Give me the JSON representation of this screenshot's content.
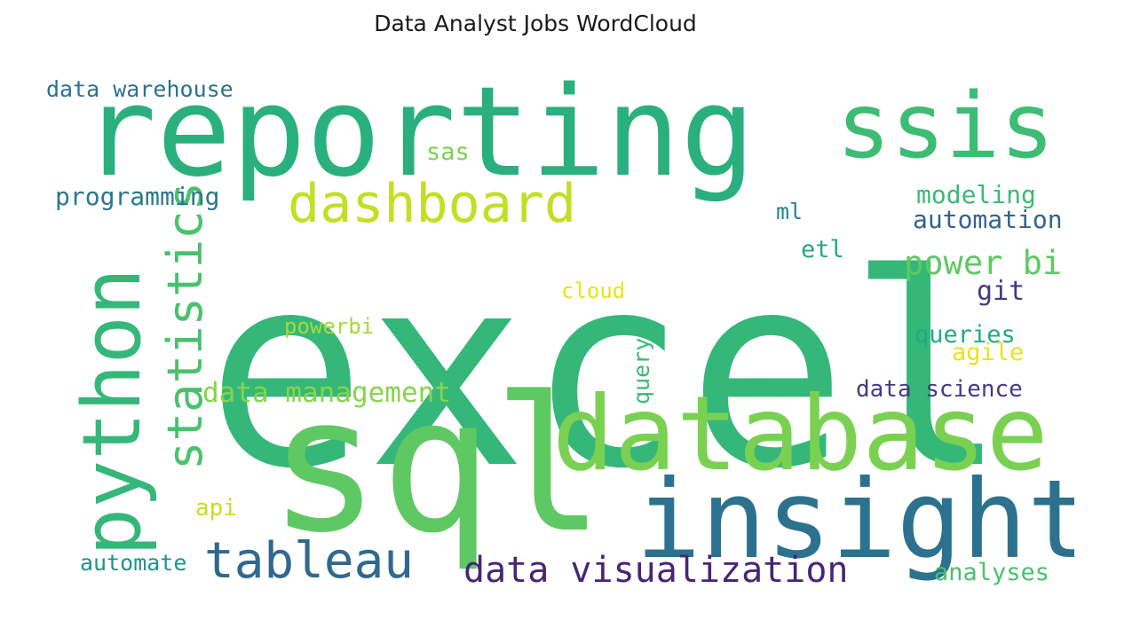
{
  "title": "Data Analyst Jobs WordCloud",
  "words": {
    "excel": {
      "text": "excel",
      "color": "#35b779"
    },
    "reporting": {
      "text": "reporting",
      "color": "#2ab07f"
    },
    "ssis": {
      "text": "ssis",
      "color": "#3dbc74"
    },
    "sql": {
      "text": "sql",
      "color": "#5ec962"
    },
    "database": {
      "text": "database",
      "color": "#7ad151"
    },
    "insight": {
      "text": "insight",
      "color": "#2c728e"
    },
    "python": {
      "text": "python",
      "color": "#35b779"
    },
    "dashboard": {
      "text": "dashboard",
      "color": "#c2df23"
    },
    "statistics": {
      "text": "statistics",
      "color": "#4ac16d"
    },
    "tableau": {
      "text": "tableau",
      "color": "#31688e"
    },
    "data_visualization": {
      "text": "data visualization",
      "color": "#482576"
    },
    "data_management": {
      "text": "data management",
      "color": "#86d549"
    },
    "power_bi": {
      "text": "power bi",
      "color": "#5ec962"
    },
    "data_warehouse": {
      "text": "data warehouse",
      "color": "#2c728e"
    },
    "programming": {
      "text": "programming",
      "color": "#2a788e"
    },
    "sas": {
      "text": "sas",
      "color": "#7ad151"
    },
    "modeling": {
      "text": "modeling",
      "color": "#3aba76"
    },
    "automation": {
      "text": "automation",
      "color": "#33638d"
    },
    "ml": {
      "text": "ml",
      "color": "#25858e"
    },
    "etl": {
      "text": "etl",
      "color": "#21a685"
    },
    "git": {
      "text": "git",
      "color": "#443a83"
    },
    "cloud": {
      "text": "cloud",
      "color": "#e5e419"
    },
    "powerbi": {
      "text": "powerbi",
      "color": "#a5db36"
    },
    "query": {
      "text": "query",
      "color": "#38b977"
    },
    "queries": {
      "text": "queries",
      "color": "#22a884"
    },
    "agile": {
      "text": "agile",
      "color": "#e7e419"
    },
    "data_science": {
      "text": "data science",
      "color": "#443b84"
    },
    "api": {
      "text": "api",
      "color": "#c2df23"
    },
    "automate": {
      "text": "automate",
      "color": "#20928c"
    },
    "analyses": {
      "text": "analyses",
      "color": "#4ac16d"
    }
  }
}
